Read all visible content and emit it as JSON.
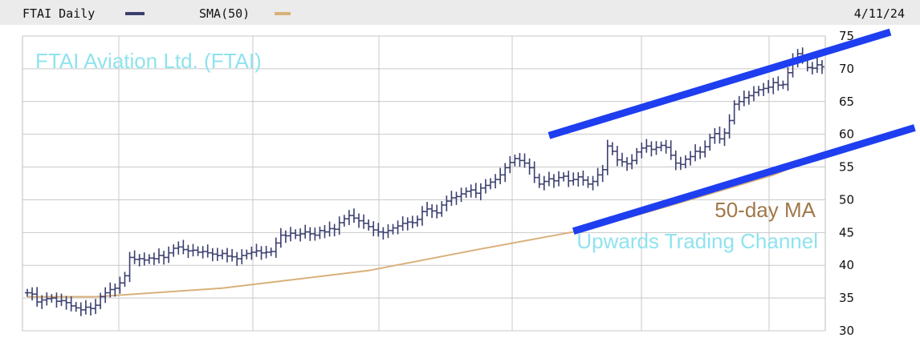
{
  "header": {
    "series_label": "FTAI Daily",
    "sma_label": "SMA(50)",
    "date": "4/11/24"
  },
  "colors": {
    "price": "#3b3f6e",
    "sma": "#d9b07a",
    "channel": "#1e3ef0",
    "title_annotation": "#8fe3ee",
    "ma_annotation": "#a0784a",
    "grid": "#c9c9c9",
    "header_bg": "#ebebeb"
  },
  "chart_data": {
    "type": "line",
    "title": "",
    "xlabel": "",
    "ylabel": "",
    "ylim": [
      30,
      75
    ],
    "y_ticks": [
      75,
      70,
      65,
      60,
      55,
      50,
      45,
      40,
      35,
      30
    ],
    "grid": true,
    "series": [
      {
        "name": "FTAI Daily",
        "style": "ohlc-bars",
        "values": [
          35.8,
          35.6,
          34.4,
          34.7,
          34.9,
          35.0,
          34.5,
          34.6,
          34.3,
          33.8,
          33.5,
          33.2,
          33.6,
          33.4,
          33.9,
          35.2,
          35.8,
          36.3,
          36.5,
          37.3,
          38.4,
          41.2,
          40.9,
          41.0,
          40.8,
          41.1,
          41.0,
          41.5,
          41.2,
          41.9,
          42.6,
          42.8,
          42.4,
          42.2,
          42.3,
          42.0,
          42.1,
          41.9,
          41.7,
          41.5,
          41.8,
          41.4,
          41.3,
          41.0,
          41.5,
          41.8,
          42.0,
          42.2,
          41.9,
          42.0,
          42.1,
          43.4,
          44.6,
          44.5,
          44.9,
          44.6,
          44.8,
          45.1,
          44.8,
          44.6,
          45.3,
          45.1,
          45.6,
          45.5,
          46.5,
          47.1,
          47.6,
          47.2,
          46.8,
          46.4,
          45.9,
          45.4,
          45.1,
          45.0,
          45.3,
          45.7,
          46.0,
          46.4,
          46.6,
          46.5,
          47.0,
          48.2,
          48.6,
          48.3,
          48.0,
          49.2,
          49.8,
          50.3,
          50.5,
          50.9,
          51.3,
          51.5,
          51.0,
          51.8,
          52.2,
          52.7,
          53.1,
          53.8,
          54.9,
          55.7,
          56.3,
          56.0,
          55.6,
          54.9,
          53.4,
          52.4,
          52.8,
          53.2,
          52.9,
          53.4,
          53.6,
          52.9,
          53.1,
          53.5,
          53.0,
          52.4,
          52.8,
          53.8,
          54.6,
          58.2,
          57.4,
          56.1,
          55.8,
          55.5,
          56.0,
          57.3,
          57.9,
          58.2,
          57.7,
          58.0,
          58.3,
          58.0,
          56.8,
          55.6,
          55.4,
          56.2,
          56.6,
          57.4,
          57.3,
          58.1,
          59.5,
          60.1,
          59.3,
          60.2,
          62.1,
          64.6,
          65.0,
          65.6,
          65.9,
          66.4,
          66.8,
          67.0,
          67.2,
          67.9,
          67.5,
          67.6,
          69.4,
          71.3,
          72.3,
          71.6,
          70.2,
          70.1,
          70.6,
          70.3
        ]
      },
      {
        "name": "SMA(50)",
        "style": "line",
        "x": [
          0,
          14,
          40,
          70,
          93,
          115,
          135,
          153,
          170
        ],
        "values": [
          35.2,
          35.2,
          36.5,
          39.2,
          42.5,
          45.5,
          49.8,
          53.8,
          58.8
        ]
      }
    ],
    "annotations": [
      {
        "id": "title",
        "text": "FTAI Aviation Ltd. (FTAI)"
      },
      {
        "id": "ma",
        "text": "50-day MA"
      },
      {
        "id": "channel",
        "text": "Upwards Trading Channel"
      }
    ],
    "channel_lines": [
      {
        "name": "upper",
        "x": [
          107,
          177
        ],
        "values": [
          59.8,
          75.6
        ]
      },
      {
        "name": "lower",
        "x": [
          112,
          182
        ],
        "values": [
          45.2,
          61.0
        ]
      }
    ]
  }
}
